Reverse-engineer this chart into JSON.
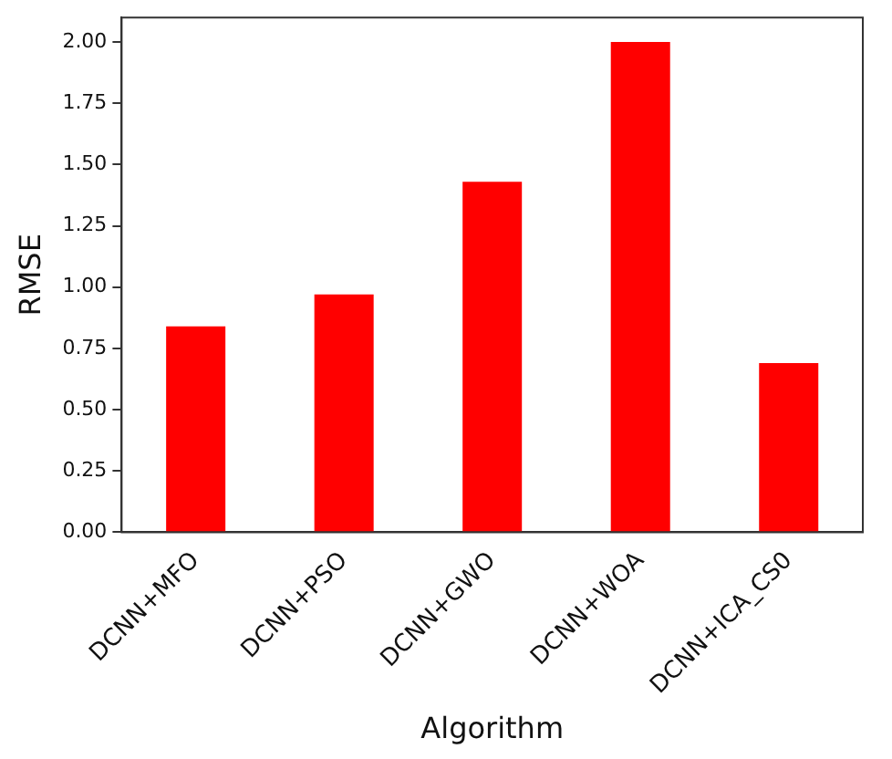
{
  "chart_data": {
    "type": "bar",
    "xlabel": "Algorithm",
    "ylabel": "RMSE",
    "categories": [
      "DCNN+MFO",
      "DCNN+PSO",
      "DCNN+GWO",
      "DCNN+WOA",
      "DCNN+ICA_CS0"
    ],
    "values": [
      0.84,
      0.97,
      1.43,
      2.0,
      0.69
    ],
    "color": "#ff0000",
    "ylim": [
      0,
      2.1
    ],
    "yticks": [
      {
        "value": 0,
        "label": "0.00"
      },
      {
        "value": 0.25,
        "label": "0.25"
      },
      {
        "value": 0.5,
        "label": "0.50"
      },
      {
        "value": 0.75,
        "label": "0.75"
      },
      {
        "value": 1,
        "label": "1.00"
      },
      {
        "value": 1.25,
        "label": "1.25"
      },
      {
        "value": 1.5,
        "label": "1.50"
      },
      {
        "value": 1.75,
        "label": "1.75"
      },
      {
        "value": 2,
        "label": "2.00"
      }
    ],
    "grid": false,
    "legend": false
  }
}
